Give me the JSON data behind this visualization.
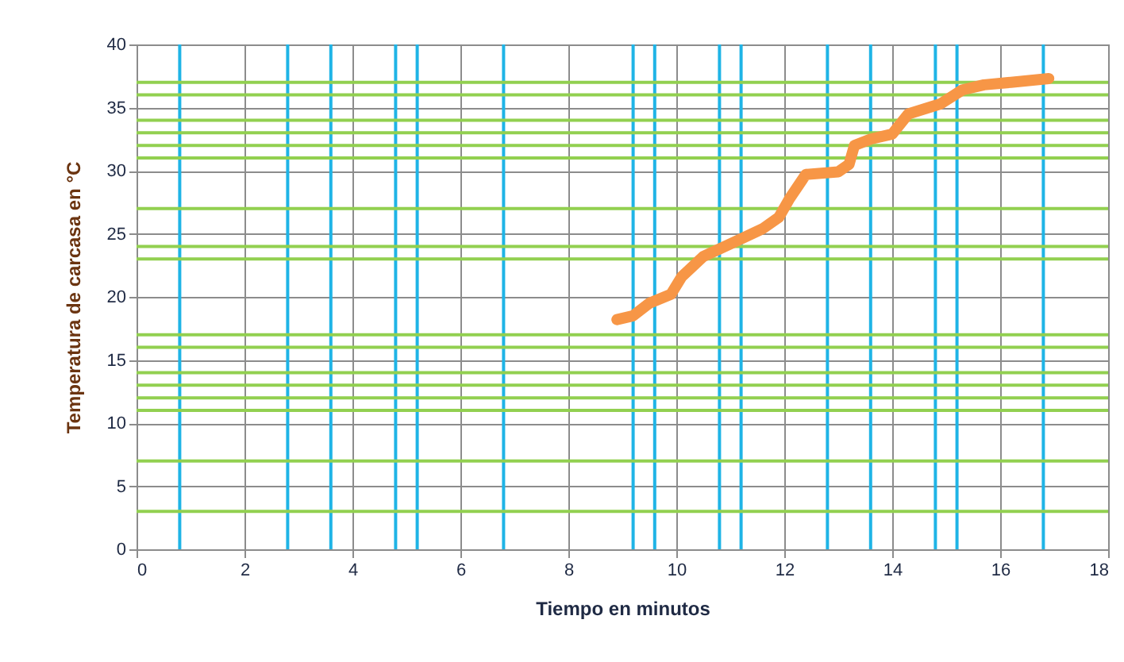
{
  "chart_data": {
    "type": "line",
    "xlabel": "Tiempo en minutos",
    "ylabel": "Temperatura de carcasa en °C",
    "x": [
      8.9,
      9.2,
      9.5,
      9.9,
      10.1,
      10.5,
      11.1,
      11.6,
      11.9,
      12.1,
      12.4,
      13.0,
      13.2,
      13.3,
      13.6,
      14.0,
      14.3,
      14.9,
      15.3,
      15.7,
      16.2,
      16.9
    ],
    "series": [
      {
        "color": "#f79646",
        "values": [
          18.2,
          18.5,
          19.5,
          20.2,
          21.6,
          23.2,
          24.4,
          25.4,
          26.3,
          27.8,
          29.7,
          29.9,
          30.5,
          32.0,
          32.5,
          32.9,
          34.5,
          35.3,
          36.4,
          36.8,
          37.0,
          37.3
        ]
      }
    ],
    "xlim": [
      0,
      18
    ],
    "xticks": [
      0,
      2,
      4,
      6,
      8,
      10,
      12,
      14,
      16,
      18
    ],
    "ylim": [
      0,
      40
    ],
    "yticks": [
      0,
      5,
      10,
      15,
      20,
      25,
      30,
      35,
      40
    ],
    "grid": true,
    "line_style": "solid",
    "ref_lines": [
      {
        "axis": "x",
        "value": 0.8,
        "color": "#1fb4e6"
      },
      {
        "axis": "x",
        "value": 2.8,
        "color": "#1fb4e6"
      },
      {
        "axis": "x",
        "value": 3.6,
        "color": "#1fb4e6"
      },
      {
        "axis": "x",
        "value": 4.8,
        "color": "#1fb4e6"
      },
      {
        "axis": "x",
        "value": 5.2,
        "color": "#1fb4e6"
      },
      {
        "axis": "x",
        "value": 6.8,
        "color": "#1fb4e6"
      },
      {
        "axis": "x",
        "value": 9.2,
        "color": "#1fb4e6"
      },
      {
        "axis": "x",
        "value": 9.6,
        "color": "#1fb4e6"
      },
      {
        "axis": "x",
        "value": 10.8,
        "color": "#1fb4e6"
      },
      {
        "axis": "x",
        "value": 11.2,
        "color": "#1fb4e6"
      },
      {
        "axis": "x",
        "value": 12.8,
        "color": "#1fb4e6"
      },
      {
        "axis": "x",
        "value": 13.6,
        "color": "#1fb4e6"
      },
      {
        "axis": "x",
        "value": 14.8,
        "color": "#1fb4e6"
      },
      {
        "axis": "x",
        "value": 15.2,
        "color": "#1fb4e6"
      },
      {
        "axis": "x",
        "value": 16.8,
        "color": "#1fb4e6"
      },
      {
        "axis": "y",
        "value": 3,
        "color": "#92d050"
      },
      {
        "axis": "y",
        "value": 7,
        "color": "#92d050"
      },
      {
        "axis": "y",
        "value": 11,
        "color": "#92d050"
      },
      {
        "axis": "y",
        "value": 12,
        "color": "#92d050"
      },
      {
        "axis": "y",
        "value": 13,
        "color": "#92d050"
      },
      {
        "axis": "y",
        "value": 14,
        "color": "#92d050"
      },
      {
        "axis": "y",
        "value": 16,
        "color": "#92d050"
      },
      {
        "axis": "y",
        "value": 17,
        "color": "#92d050"
      },
      {
        "axis": "y",
        "value": 23,
        "color": "#92d050"
      },
      {
        "axis": "y",
        "value": 24,
        "color": "#92d050"
      },
      {
        "axis": "y",
        "value": 27,
        "color": "#92d050"
      },
      {
        "axis": "y",
        "value": 31,
        "color": "#92d050"
      },
      {
        "axis": "y",
        "value": 32,
        "color": "#92d050"
      },
      {
        "axis": "y",
        "value": 33,
        "color": "#92d050"
      },
      {
        "axis": "y",
        "value": 34,
        "color": "#92d050"
      },
      {
        "axis": "y",
        "value": 36,
        "color": "#92d050"
      },
      {
        "axis": "y",
        "value": 37,
        "color": "#92d050"
      }
    ]
  }
}
